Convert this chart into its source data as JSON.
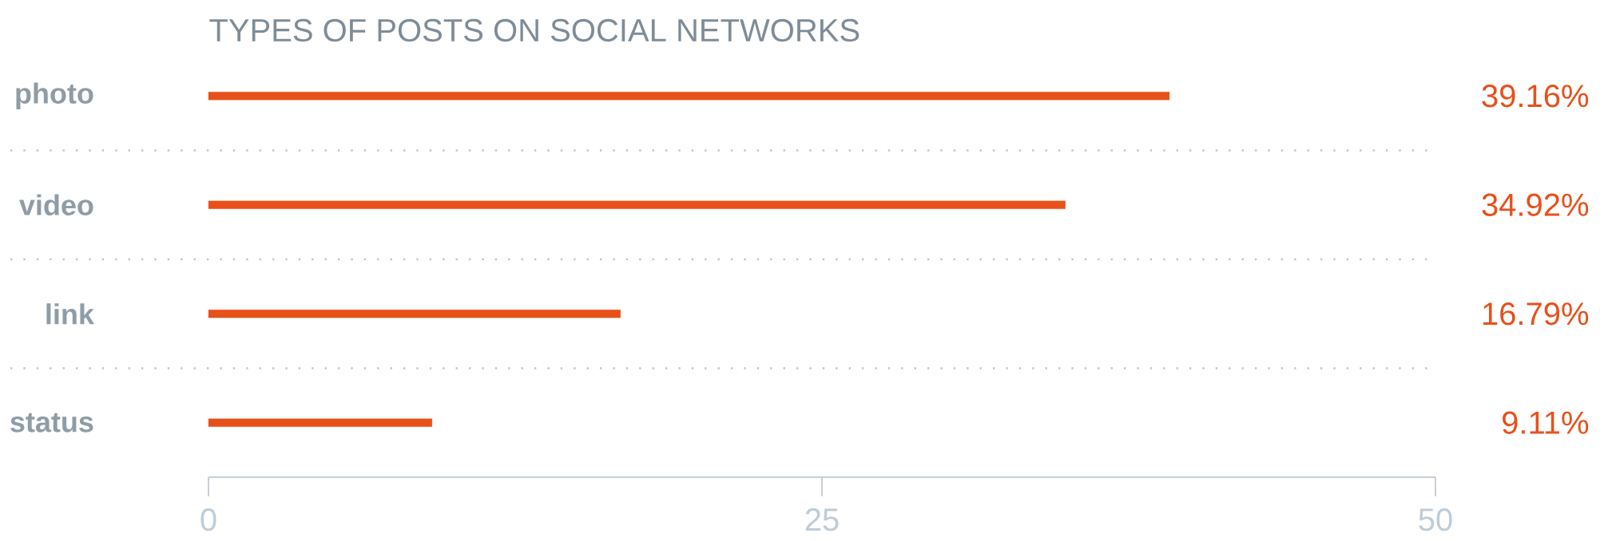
{
  "chart_data": {
    "type": "bar",
    "orientation": "horizontal",
    "title": "TYPES OF POSTS ON SOCIAL NETWORKS",
    "categories": [
      "photo",
      "video",
      "link",
      "status"
    ],
    "values": [
      39.16,
      34.92,
      16.79,
      9.11
    ],
    "value_labels": [
      "39.16%",
      "34.92%",
      "16.79%",
      "9.11%"
    ],
    "color": "#e8501a",
    "xlim": [
      0,
      50
    ],
    "xticks": [
      0,
      25,
      50
    ],
    "grid": "y"
  }
}
